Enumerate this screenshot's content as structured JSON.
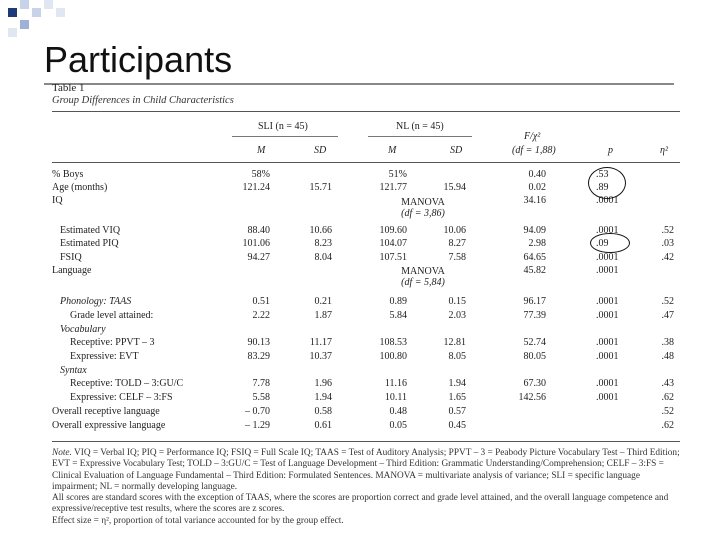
{
  "slide_title": "Participants",
  "table_label": "Table 1",
  "table_caption": "Group Differences in Child Characteristics",
  "headers": {
    "sli_group": "SLI (n = 45)",
    "nl_group": "NL (n = 45)",
    "f_stat": "F/χ²",
    "df": "(df = 1,88)",
    "m": "M",
    "sd": "SD",
    "p": "p",
    "eta": "η²"
  },
  "rows": [
    {
      "label": "% Boys",
      "sli_m": "58%",
      "sli_sd": "",
      "nl_m": "51%",
      "nl_sd": "",
      "f": "0.40",
      "p": ".53",
      "eta": ""
    },
    {
      "label": "Age (months)",
      "sli_m": "121.24",
      "sli_sd": "15.71",
      "nl_m": "121.77",
      "nl_sd": "15.94",
      "f": "0.02",
      "p": ".89",
      "eta": ""
    },
    {
      "label": "IQ",
      "sli_m": "",
      "sli_sd": "",
      "nl_m": "",
      "nl_sd": "",
      "f": "34.16",
      "p": ".0001",
      "eta": ""
    },
    {
      "label": "Estimated VIQ",
      "sli_m": "88.40",
      "sli_sd": "10.66",
      "nl_m": "109.60",
      "nl_sd": "10.06",
      "f": "94.09",
      "p": ".0001",
      "eta": ".52"
    },
    {
      "label": "Estimated PIQ",
      "sli_m": "101.06",
      "sli_sd": "8.23",
      "nl_m": "104.07",
      "nl_sd": "8.27",
      "f": "2.98",
      "p": ".09",
      "eta": ".03"
    },
    {
      "label": "FSIQ",
      "sli_m": "94.27",
      "sli_sd": "8.04",
      "nl_m": "107.51",
      "nl_sd": "7.58",
      "f": "64.65",
      "p": ".0001",
      "eta": ".42"
    },
    {
      "label": "Language",
      "sli_m": "",
      "sli_sd": "",
      "nl_m": "",
      "nl_sd": "",
      "f": "45.82",
      "p": ".0001",
      "eta": ""
    },
    {
      "label": "Phonology: TAAS",
      "sli_m": "0.51",
      "sli_sd": "0.21",
      "nl_m": "0.89",
      "nl_sd": "0.15",
      "f": "96.17",
      "p": ".0001",
      "eta": ".52"
    },
    {
      "label": "Grade level attained:",
      "sli_m": "2.22",
      "sli_sd": "1.87",
      "nl_m": "5.84",
      "nl_sd": "2.03",
      "f": "77.39",
      "p": ".0001",
      "eta": ".47"
    },
    {
      "label": "Vocabulary",
      "sli_m": "",
      "sli_sd": "",
      "nl_m": "",
      "nl_sd": "",
      "f": "",
      "p": "",
      "eta": ""
    },
    {
      "label": "Receptive: PPVT – 3",
      "sli_m": "90.13",
      "sli_sd": "11.17",
      "nl_m": "108.53",
      "nl_sd": "12.81",
      "f": "52.74",
      "p": ".0001",
      "eta": ".38"
    },
    {
      "label": "Expressive: EVT",
      "sli_m": "83.29",
      "sli_sd": "10.37",
      "nl_m": "100.80",
      "nl_sd": "8.05",
      "f": "80.05",
      "p": ".0001",
      "eta": ".48"
    },
    {
      "label": "Syntax",
      "sli_m": "",
      "sli_sd": "",
      "nl_m": "",
      "nl_sd": "",
      "f": "",
      "p": "",
      "eta": ""
    },
    {
      "label": "Receptive: TOLD – 3:GU/C",
      "sli_m": "7.78",
      "sli_sd": "1.96",
      "nl_m": "11.16",
      "nl_sd": "1.94",
      "f": "67.30",
      "p": ".0001",
      "eta": ".43"
    },
    {
      "label": "Expressive: CELF – 3:FS",
      "sli_m": "5.58",
      "sli_sd": "1.94",
      "nl_m": "10.11",
      "nl_sd": "1.65",
      "f": "142.56",
      "p": ".0001",
      "eta": ".62"
    },
    {
      "label": "Overall receptive language",
      "sli_m": "– 0.70",
      "sli_sd": "0.58",
      "nl_m": "0.48",
      "nl_sd": "0.57",
      "f": "",
      "p": "",
      "eta": ".52"
    },
    {
      "label": "Overall expressive language",
      "sli_m": "– 1.29",
      "sli_sd": "0.61",
      "nl_m": "0.05",
      "nl_sd": "0.45",
      "f": "",
      "p": "",
      "eta": ".62"
    }
  ],
  "manova_iq": {
    "label": "MANOVA",
    "df": "(df = 3,86)"
  },
  "manova_lang": {
    "label": "MANOVA",
    "df": "(df = 5,84)"
  },
  "note": {
    "lead": "Note.",
    "line1": " VIQ = Verbal IQ; PIQ = Performance IQ; FSIQ = Full Scale IQ; TAAS = Test of Auditory Analysis; PPVT – 3 = Peabody Picture Vocabulary Test – Third Edition; EVT = Expressive Vocabulary Test; TOLD – 3:GU/C = Test of Language Development – Third Edition: Grammatic Understanding/Comprehension; CELF – 3:FS = Clinical Evaluation of Language Fundamental – Third Edition: Formulated Sentences. MANOVA = multivariate analysis of variance; SLI = specific language impairment; NL = normally developing language.",
    "line2": "All scores are standard scores with the exception of TAAS, where the scores are proportion correct and grade level attained, and the overall language competence and expressive/receptive test results, where the scores are z scores.",
    "line3": "Effect size = η², proportion of total variance accounted for by the group effect."
  },
  "colors": {
    "deco_dark": "#1f3a7a",
    "deco_light": "#9fb2d6",
    "rule": "#555555"
  }
}
